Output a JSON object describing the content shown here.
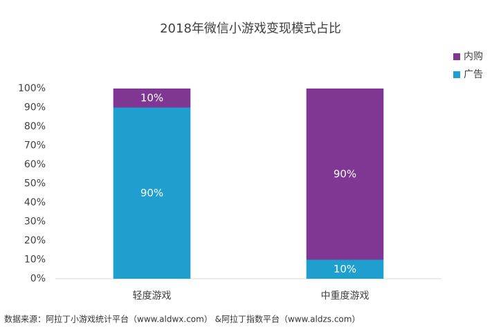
{
  "chart_data": {
    "type": "stacked_bar",
    "title": "2018年微信小游戏变现模式占比",
    "categories": [
      "轻度游戏",
      "中重度游戏"
    ],
    "series": [
      {
        "name": "广告",
        "color": "#1e9fcf",
        "values": [
          90,
          10
        ],
        "value_labels": [
          "90%",
          "10%"
        ]
      },
      {
        "name": "内购",
        "color": "#7f3793",
        "values": [
          10,
          90
        ],
        "value_labels": [
          "10%",
          "90%"
        ]
      }
    ],
    "ylim": [
      0,
      100
    ],
    "yticks": [
      {
        "value": 0,
        "label": "0%"
      },
      {
        "value": 10,
        "label": "10%"
      },
      {
        "value": 20,
        "label": "20%"
      },
      {
        "value": 30,
        "label": "30%"
      },
      {
        "value": 40,
        "label": "40%"
      },
      {
        "value": 50,
        "label": "50%"
      },
      {
        "value": 60,
        "label": "60%"
      },
      {
        "value": 70,
        "label": "70%"
      },
      {
        "value": 80,
        "label": "80%"
      },
      {
        "value": 90,
        "label": "90%"
      },
      {
        "value": 100,
        "label": "100%"
      }
    ],
    "legend": "top-right",
    "source": "数据来源：阿拉丁小游戏统计平台（www.aldwx.com）   &阿拉丁指数平台（www.aldzs.com）"
  }
}
